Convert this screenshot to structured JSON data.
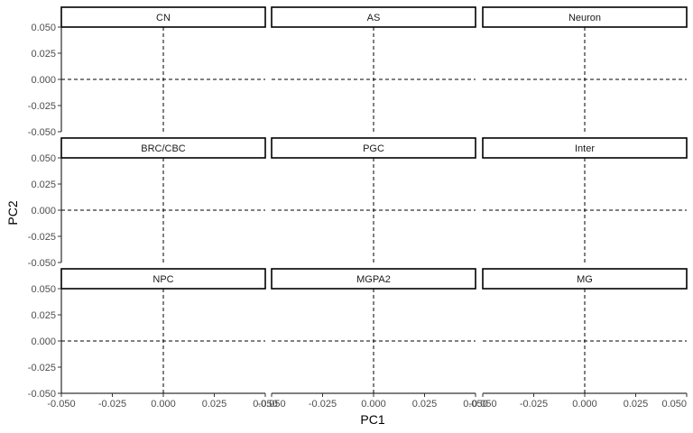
{
  "chart_data": {
    "type": "scatter",
    "facet_layout": {
      "rows": 3,
      "cols": 3
    },
    "facets": [
      "CN",
      "AS",
      "Neuron",
      "BRC/CBC",
      "PGC",
      "Inter",
      "NPC",
      "MGPA2",
      "MG"
    ],
    "xlabel": "PC1",
    "ylabel": "PC2",
    "xlim": [
      -0.05,
      0.05
    ],
    "ylim": [
      -0.05,
      0.05
    ],
    "x_ticks": [
      -0.05,
      -0.025,
      0.0,
      0.025,
      0.05
    ],
    "x_tick_labels": [
      "-0.050",
      "-0.025",
      "0.000",
      "0.025",
      "0.050"
    ],
    "y_ticks": [
      0.05,
      0.025,
      0.0,
      -0.025,
      -0.05
    ],
    "y_tick_labels": [
      "0.050",
      "0.025",
      "0.000",
      "-0.025",
      "-0.050"
    ],
    "reference_lines": {
      "x": 0,
      "y": 0,
      "style": "dashed"
    },
    "series": [],
    "grid": false,
    "legend": "none"
  }
}
